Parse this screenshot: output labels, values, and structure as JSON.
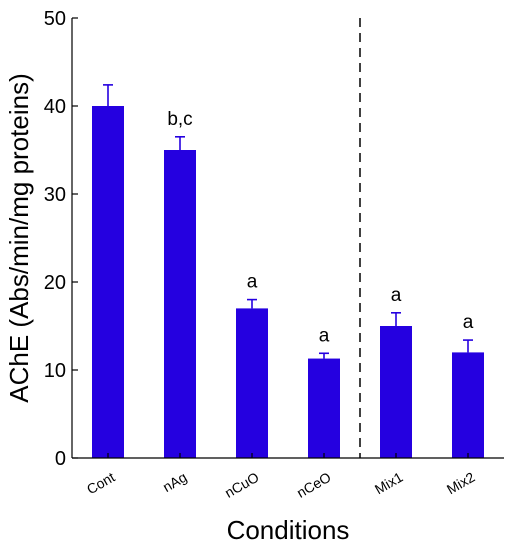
{
  "chart_data": {
    "type": "bar",
    "categories": [
      "Cont",
      "nAg",
      "nCuO",
      "nCeO",
      "Mix1",
      "Mix2"
    ],
    "values": [
      40.0,
      35.0,
      17.0,
      11.3,
      15.0,
      12.0
    ],
    "errors": [
      2.4,
      1.5,
      1.0,
      0.6,
      1.5,
      1.4
    ],
    "annotations": [
      "",
      "b,c",
      "a",
      "a",
      "a",
      "a"
    ],
    "xlabel": "Conditions",
    "ylabel": "AChE (Abs/min/mg proteins)",
    "ylim": [
      0,
      50
    ],
    "yticks": [
      0,
      10,
      20,
      30,
      40,
      50
    ],
    "separator_after_category": "nCeO",
    "bar_color": "#2500e0",
    "grid": false,
    "legend": "none"
  }
}
